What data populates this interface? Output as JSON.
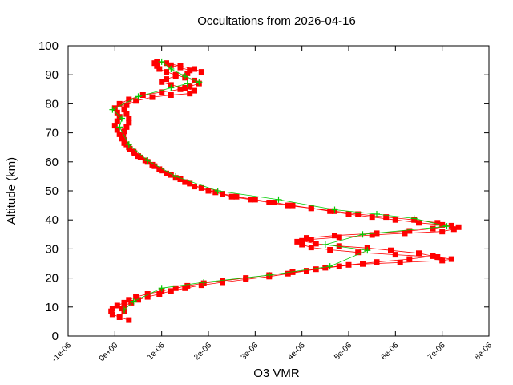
{
  "chart_data": {
    "type": "line",
    "title": "Occultations from 2026-04-16",
    "xlabel": "O3 VMR",
    "ylabel": "Altitude (km)",
    "xlim": [
      -1e-06,
      8e-06
    ],
    "ylim": [
      0,
      100
    ],
    "x_tick_values": [
      -1e-06,
      0,
      1e-06,
      2e-06,
      3e-06,
      4e-06,
      5e-06,
      6e-06,
      7e-06,
      8e-06
    ],
    "x_tick_labels": [
      "-1e-06",
      "0e+00",
      "1e-06",
      "2e-06",
      "3e-06",
      "4e-06",
      "5e-06",
      "6e-06",
      "7e-06",
      "8e-06"
    ],
    "y_tick_values": [
      0,
      10,
      20,
      30,
      40,
      50,
      60,
      70,
      80,
      90,
      100
    ],
    "y_tick_labels": [
      "0",
      "10",
      "20",
      "30",
      "40",
      "50",
      "60",
      "70",
      "80",
      "90",
      "100"
    ],
    "grid": false,
    "legend": "none",
    "colors": {
      "profile": "#ff0000",
      "mean": "#00cc00"
    },
    "series": [
      {
        "marker": "square",
        "color": "#ff0000",
        "points": [
          [
            3e-07,
            5.5
          ],
          [
            1e-07,
            6.5
          ],
          [
            -5e-08,
            7.5
          ],
          [
            -8e-08,
            8.5
          ],
          [
            -5e-08,
            9.5
          ],
          [
            5e-08,
            10.5
          ],
          [
            2e-07,
            11.5
          ],
          [
            3e-07,
            12.5
          ],
          [
            4.5e-07,
            13.5
          ],
          [
            7e-07,
            14.5
          ],
          [
            1e-06,
            15.5
          ],
          [
            1.3e-06,
            16.5
          ],
          [
            1.55e-06,
            17.3
          ],
          [
            1.9e-06,
            18.2
          ],
          [
            2.3e-06,
            19.0
          ],
          [
            2.8e-06,
            20.0
          ],
          [
            3.3e-06,
            21.0
          ],
          [
            3.8e-06,
            22.0
          ],
          [
            4.3e-06,
            23.0
          ],
          [
            4.8e-06,
            24.0
          ],
          [
            5.3e-06,
            24.8
          ],
          [
            6.1e-06,
            25.3
          ],
          [
            7e-06,
            26.0
          ],
          [
            7.2e-06,
            26.5
          ],
          [
            6.9e-06,
            27.2
          ],
          [
            6e-06,
            28.0
          ],
          [
            5.2e-06,
            28.8
          ],
          [
            4.6e-06,
            29.7
          ],
          [
            4.2e-06,
            30.5
          ],
          [
            4e-06,
            31.5
          ],
          [
            3.9e-06,
            32.5
          ],
          [
            4.2e-06,
            33.3
          ],
          [
            4.8e-06,
            34.0
          ],
          [
            5.5e-06,
            34.8
          ],
          [
            6.2e-06,
            35.4
          ],
          [
            7e-06,
            36.0
          ],
          [
            7.25e-06,
            36.8
          ],
          [
            7.35e-06,
            37.5
          ],
          [
            7e-06,
            38.3
          ],
          [
            6.5e-06,
            39.0
          ],
          [
            6e-06,
            40.0
          ],
          [
            5.5e-06,
            41.0
          ],
          [
            5e-06,
            42.0
          ],
          [
            4.6e-06,
            43.0
          ],
          [
            4.2e-06,
            44.0
          ],
          [
            3.8e-06,
            45.0
          ],
          [
            3.4e-06,
            46.0
          ],
          [
            3e-06,
            47.0
          ],
          [
            2.6e-06,
            48.0
          ],
          [
            2.3e-06,
            49.0
          ],
          [
            2e-06,
            50.0
          ],
          [
            1.7e-06,
            51.5
          ],
          [
            1.5e-06,
            53.0
          ],
          [
            1.3e-06,
            54.5
          ],
          [
            1.1e-06,
            56.0
          ],
          [
            9.5e-07,
            57.5
          ],
          [
            8e-07,
            59.0
          ],
          [
            6.5e-07,
            60.5
          ],
          [
            5e-07,
            62.0
          ],
          [
            4e-07,
            63.5
          ],
          [
            3e-07,
            65.0
          ],
          [
            2e-07,
            66.5
          ],
          [
            1.5e-07,
            68.0
          ],
          [
            1e-07,
            69.5
          ],
          [
            5e-08,
            71.0
          ],
          [
            0.0,
            72.5
          ],
          [
            5e-08,
            74.0
          ],
          [
            1e-07,
            75.5
          ],
          [
            5e-08,
            77.0
          ],
          [
            0.0,
            78.5
          ],
          [
            1e-07,
            80.0
          ],
          [
            3e-07,
            81.5
          ],
          [
            6e-07,
            83.0
          ],
          [
            1e-06,
            84.0
          ],
          [
            1.4e-06,
            85.0
          ],
          [
            1.6e-06,
            86.0
          ],
          [
            1.8e-06,
            87.0
          ],
          [
            1.7e-06,
            88.0
          ],
          [
            1.5e-06,
            89.0
          ],
          [
            1.3e-06,
            90.0
          ],
          [
            1.1e-06,
            91.0
          ],
          [
            9.5e-07,
            92.0
          ],
          [
            9e-07,
            93.0
          ],
          [
            8.5e-07,
            94.0
          ],
          [
            9e-07,
            94.5
          ],
          [
            1.1e-06,
            94.0
          ],
          [
            1.4e-06,
            93.0
          ],
          [
            1.7e-06,
            92.0
          ],
          [
            1.85e-06,
            91.0
          ]
        ]
      },
      {
        "marker": "square",
        "color": "#ff0000",
        "points": [
          [
            2e-07,
            8.5
          ],
          [
            1.5e-07,
            9.5
          ],
          [
            2e-07,
            10.5
          ],
          [
            3.5e-07,
            11.5
          ],
          [
            5e-07,
            12.5
          ],
          [
            7e-07,
            13.5
          ],
          [
            9.5e-07,
            14.5
          ],
          [
            1.2e-06,
            15.5
          ],
          [
            1.5e-06,
            16.5
          ],
          [
            1.85e-06,
            17.5
          ],
          [
            2.3e-06,
            18.5
          ],
          [
            2.8e-06,
            19.5
          ],
          [
            3.3e-06,
            20.5
          ],
          [
            3.7e-06,
            21.5
          ],
          [
            4.1e-06,
            22.5
          ],
          [
            4.5e-06,
            23.5
          ],
          [
            5e-06,
            24.5
          ],
          [
            5.6e-06,
            25.5
          ],
          [
            6.3e-06,
            26.5
          ],
          [
            6.8e-06,
            27.5
          ],
          [
            6.5e-06,
            28.5
          ],
          [
            5.9e-06,
            29.5
          ],
          [
            5.4e-06,
            30.3
          ],
          [
            4.8e-06,
            31.0
          ],
          [
            4.3e-06,
            31.8
          ],
          [
            4e-06,
            32.8
          ],
          [
            4.1e-06,
            33.8
          ],
          [
            4.7e-06,
            34.6
          ],
          [
            5.6e-06,
            35.4
          ],
          [
            6.3e-06,
            36.2
          ],
          [
            6.8e-06,
            37.0
          ],
          [
            7.2e-06,
            38.0
          ],
          [
            6.9e-06,
            39.0
          ],
          [
            6.4e-06,
            40.0
          ],
          [
            5.8e-06,
            41.0
          ],
          [
            5.2e-06,
            42.0
          ],
          [
            4.7e-06,
            43.0
          ],
          [
            4.2e-06,
            44.0
          ],
          [
            3.7e-06,
            45.0
          ],
          [
            3.3e-06,
            46.0
          ],
          [
            2.9e-06,
            47.0
          ],
          [
            2.5e-06,
            48.0
          ],
          [
            2.15e-06,
            49.5
          ],
          [
            1.85e-06,
            51.0
          ],
          [
            1.6e-06,
            52.5
          ],
          [
            1.4e-06,
            54.0
          ],
          [
            1.2e-06,
            55.5
          ],
          [
            1e-06,
            57.0
          ],
          [
            8.5e-07,
            58.5
          ],
          [
            7e-07,
            60.0
          ],
          [
            5.5e-07,
            61.5
          ],
          [
            4.2e-07,
            63.0
          ],
          [
            3.2e-07,
            64.5
          ],
          [
            2.5e-07,
            66.0
          ],
          [
            2e-07,
            67.5
          ],
          [
            1.8e-07,
            69.0
          ],
          [
            2e-07,
            70.5
          ],
          [
            2.5e-07,
            72.0
          ],
          [
            3e-07,
            73.5
          ],
          [
            3e-07,
            75.0
          ],
          [
            2.5e-07,
            76.5
          ],
          [
            2e-07,
            78.0
          ],
          [
            2.5e-07,
            79.5
          ],
          [
            4.5e-07,
            81.0
          ],
          [
            8e-07,
            82.3
          ],
          [
            1.2e-06,
            83.0
          ],
          [
            1.6e-06,
            83.5
          ],
          [
            1.7e-06,
            84.5
          ],
          [
            1.5e-06,
            85.5
          ],
          [
            1.2e-06,
            86.5
          ],
          [
            1e-06,
            87.5
          ],
          [
            1.1e-06,
            88.5
          ],
          [
            1.3e-06,
            89.5
          ],
          [
            1.55e-06,
            90.5
          ],
          [
            1.6e-06,
            91.5
          ],
          [
            1.4e-06,
            92.5
          ],
          [
            1.2e-06,
            93.3
          ]
        ]
      },
      {
        "marker": "plus",
        "color": "#00cc00",
        "points": [
          [
            2e-07,
            9.0
          ],
          [
            4e-07,
            12.0
          ],
          [
            1e-06,
            16.5
          ],
          [
            1.9e-06,
            18.5
          ],
          [
            3.3e-06,
            21.0
          ],
          [
            4.6e-06,
            24.0
          ],
          [
            5.4e-06,
            29.5
          ],
          [
            4.5e-06,
            31.5
          ],
          [
            5.3e-06,
            35.0
          ],
          [
            7.1e-06,
            37.8
          ],
          [
            6.4e-06,
            40.5
          ],
          [
            5.6e-06,
            42.0
          ],
          [
            4.7e-06,
            43.5
          ],
          [
            3.5e-06,
            47.0
          ],
          [
            2.2e-06,
            50.0
          ],
          [
            1.3e-06,
            55.0
          ],
          [
            7e-07,
            60.5
          ],
          [
            3e-07,
            66.0
          ],
          [
            1e-07,
            72.0
          ],
          [
            1.5e-07,
            75.0
          ],
          [
            -5e-08,
            78.0
          ],
          [
            5e-07,
            82.5
          ],
          [
            1.2e-06,
            85.5
          ],
          [
            1.55e-06,
            87.0
          ],
          [
            1.8e-06,
            87.5
          ],
          [
            1.5e-06,
            89.5
          ],
          [
            1.2e-06,
            92.0
          ],
          [
            1e-06,
            94.5
          ]
        ]
      }
    ]
  }
}
